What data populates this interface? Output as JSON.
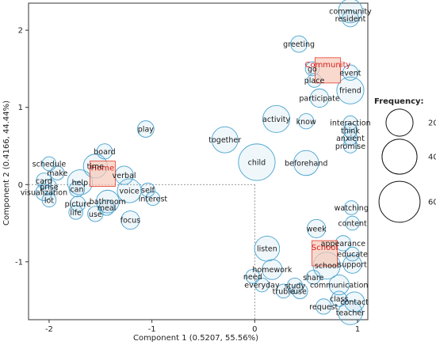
{
  "chart_data": {
    "type": "scatter",
    "title": "",
    "xlabel": "Component 1 (0.5207, 55.56%)",
    "ylabel": "Component 2 (0.4166, 44.44%)",
    "xlim": [
      -2.2,
      1.1
    ],
    "ylim": [
      -1.75,
      2.35
    ],
    "x_ticks": [
      -2,
      -1,
      0,
      1
    ],
    "y_ticks": [
      -1,
      0,
      1,
      2
    ],
    "bubble_color": "#4aa3cf",
    "category_color": "#e53a2a",
    "legend": {
      "title": "Frequency:",
      "placement": "right",
      "sizes": [
        20,
        40,
        60
      ]
    },
    "categories": [
      {
        "label": "Home",
        "x": -1.48,
        "y": 0.14
      },
      {
        "label": "Community",
        "x": 0.71,
        "y": 1.48
      },
      {
        "label": "School",
        "x": 0.68,
        "y": -0.89
      }
    ],
    "points": [
      {
        "label": "community",
        "x": 0.93,
        "y": 2.25,
        "freq": 14
      },
      {
        "label": "resident",
        "x": 0.93,
        "y": 2.15,
        "freq": 4
      },
      {
        "label": "greeting",
        "x": 0.43,
        "y": 1.82,
        "freq": 4
      },
      {
        "label": "go",
        "x": 0.56,
        "y": 1.5,
        "freq": 2
      },
      {
        "label": "event",
        "x": 0.93,
        "y": 1.45,
        "freq": 3
      },
      {
        "label": "place",
        "x": 0.58,
        "y": 1.35,
        "freq": 2
      },
      {
        "label": "friend",
        "x": 0.93,
        "y": 1.22,
        "freq": 20
      },
      {
        "label": "participate",
        "x": 0.63,
        "y": 1.12,
        "freq": 6
      },
      {
        "label": "activity",
        "x": 0.21,
        "y": 0.85,
        "freq": 20
      },
      {
        "label": "know",
        "x": 0.5,
        "y": 0.82,
        "freq": 3
      },
      {
        "label": "interaction",
        "x": 0.93,
        "y": 0.8,
        "freq": 2
      },
      {
        "label": "think",
        "x": 0.93,
        "y": 0.7,
        "freq": 2
      },
      {
        "label": "anxient",
        "x": 0.93,
        "y": 0.6,
        "freq": 2
      },
      {
        "label": "promise",
        "x": 0.93,
        "y": 0.5,
        "freq": 2
      },
      {
        "label": "play",
        "x": -1.06,
        "y": 0.72,
        "freq": 4
      },
      {
        "label": "together",
        "x": -0.29,
        "y": 0.58,
        "freq": 18
      },
      {
        "label": "child",
        "x": 0.02,
        "y": 0.29,
        "freq": 45
      },
      {
        "label": "beforehand",
        "x": 0.5,
        "y": 0.28,
        "freq": 16
      },
      {
        "label": "board",
        "x": -1.46,
        "y": 0.43,
        "freq": 3
      },
      {
        "label": "schedule",
        "x": -2.0,
        "y": 0.27,
        "freq": 2
      },
      {
        "label": "time",
        "x": -1.55,
        "y": 0.24,
        "freq": 14
      },
      {
        "label": "make",
        "x": -1.92,
        "y": 0.15,
        "freq": 2
      },
      {
        "label": "verbal",
        "x": -1.27,
        "y": 0.12,
        "freq": 6
      },
      {
        "label": "card",
        "x": -2.05,
        "y": 0.05,
        "freq": 3
      },
      {
        "label": "help",
        "x": -1.7,
        "y": 0.03,
        "freq": 16
      },
      {
        "label": "prise",
        "x": -2.0,
        "y": -0.03,
        "freq": 3
      },
      {
        "label": "can",
        "x": -1.73,
        "y": -0.06,
        "freq": 3
      },
      {
        "label": "voice",
        "x": -1.22,
        "y": -0.08,
        "freq": 14
      },
      {
        "label": "self",
        "x": -1.04,
        "y": -0.07,
        "freq": 2
      },
      {
        "label": "visualization",
        "x": -2.05,
        "y": -0.1,
        "freq": 4
      },
      {
        "label": "interest",
        "x": -0.99,
        "y": -0.18,
        "freq": 2
      },
      {
        "label": "lot",
        "x": -2.0,
        "y": -0.2,
        "freq": 2
      },
      {
        "label": "bathroom",
        "x": -1.43,
        "y": -0.22,
        "freq": 12
      },
      {
        "label": "picture",
        "x": -1.72,
        "y": -0.25,
        "freq": 3
      },
      {
        "label": "meal",
        "x": -1.44,
        "y": -0.3,
        "freq": 3
      },
      {
        "label": "life",
        "x": -1.74,
        "y": -0.36,
        "freq": 2
      },
      {
        "label": "use",
        "x": -1.55,
        "y": -0.38,
        "freq": 3
      },
      {
        "label": "focus",
        "x": -1.21,
        "y": -0.46,
        "freq": 6
      },
      {
        "label": "watching",
        "x": 0.94,
        "y": -0.3,
        "freq": 2
      },
      {
        "label": "content",
        "x": 0.95,
        "y": -0.5,
        "freq": 2
      },
      {
        "label": "week",
        "x": 0.6,
        "y": -0.57,
        "freq": 6
      },
      {
        "label": "appearance",
        "x": 0.86,
        "y": -0.76,
        "freq": 3
      },
      {
        "label": "listen",
        "x": 0.12,
        "y": -0.83,
        "freq": 16
      },
      {
        "label": "educate",
        "x": 0.95,
        "y": -0.9,
        "freq": 2
      },
      {
        "label": "support",
        "x": 0.95,
        "y": -1.03,
        "freq": 6
      },
      {
        "label": "school",
        "x": 0.7,
        "y": -1.05,
        "freq": 20
      },
      {
        "label": "homework",
        "x": 0.17,
        "y": -1.1,
        "freq": 8
      },
      {
        "label": "need",
        "x": -0.02,
        "y": -1.19,
        "freq": 2
      },
      {
        "label": "share",
        "x": 0.57,
        "y": -1.2,
        "freq": 2
      },
      {
        "label": "everyday",
        "x": 0.07,
        "y": -1.3,
        "freq": 2
      },
      {
        "label": "study",
        "x": 0.39,
        "y": -1.31,
        "freq": 3
      },
      {
        "label": "communication",
        "x": 0.82,
        "y": -1.3,
        "freq": 8
      },
      {
        "label": "truble",
        "x": 0.28,
        "y": -1.38,
        "freq": 2
      },
      {
        "label": "use",
        "x": 0.44,
        "y": -1.38,
        "freq": 3
      },
      {
        "label": "class",
        "x": 0.82,
        "y": -1.48,
        "freq": 3
      },
      {
        "label": "contact",
        "x": 0.97,
        "y": -1.52,
        "freq": 8
      },
      {
        "label": "request",
        "x": 0.67,
        "y": -1.58,
        "freq": 3
      },
      {
        "label": "teacher",
        "x": 0.93,
        "y": -1.66,
        "freq": 14
      }
    ]
  }
}
